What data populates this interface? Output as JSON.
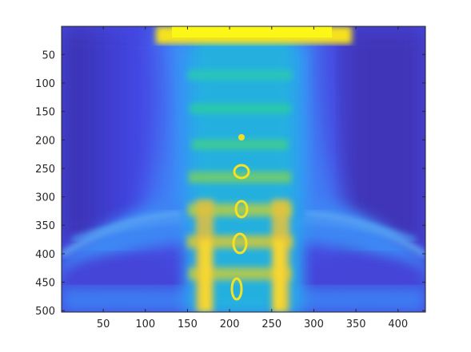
{
  "figure": {
    "kind": "false-color medical image (cervical spine X-ray, parula colormap)",
    "colormap": [
      "#3e26a8",
      "#4744e8",
      "#3b73fc",
      "#2e9cf0",
      "#14bbd7",
      "#24cb9a",
      "#8fcb60",
      "#e1be3e",
      "#f9d92f",
      "#f9fb15"
    ],
    "frame_color": "#262626"
  },
  "chart_data": {
    "type": "heatmap",
    "title": "",
    "xlabel": "",
    "ylabel": "",
    "xlim": [
      1,
      432
    ],
    "ylim": [
      1,
      502
    ],
    "y_reversed": true,
    "xticks": [
      50,
      100,
      150,
      200,
      250,
      300,
      350,
      400
    ],
    "yticks": [
      50,
      100,
      150,
      200,
      250,
      300,
      350,
      400,
      450,
      500
    ],
    "xtick_labels": [
      "50",
      "100",
      "150",
      "200",
      "250",
      "300",
      "350",
      "400"
    ],
    "ytick_labels": [
      "50",
      "100",
      "150",
      "200",
      "250",
      "300",
      "350",
      "400",
      "450",
      "500"
    ]
  }
}
